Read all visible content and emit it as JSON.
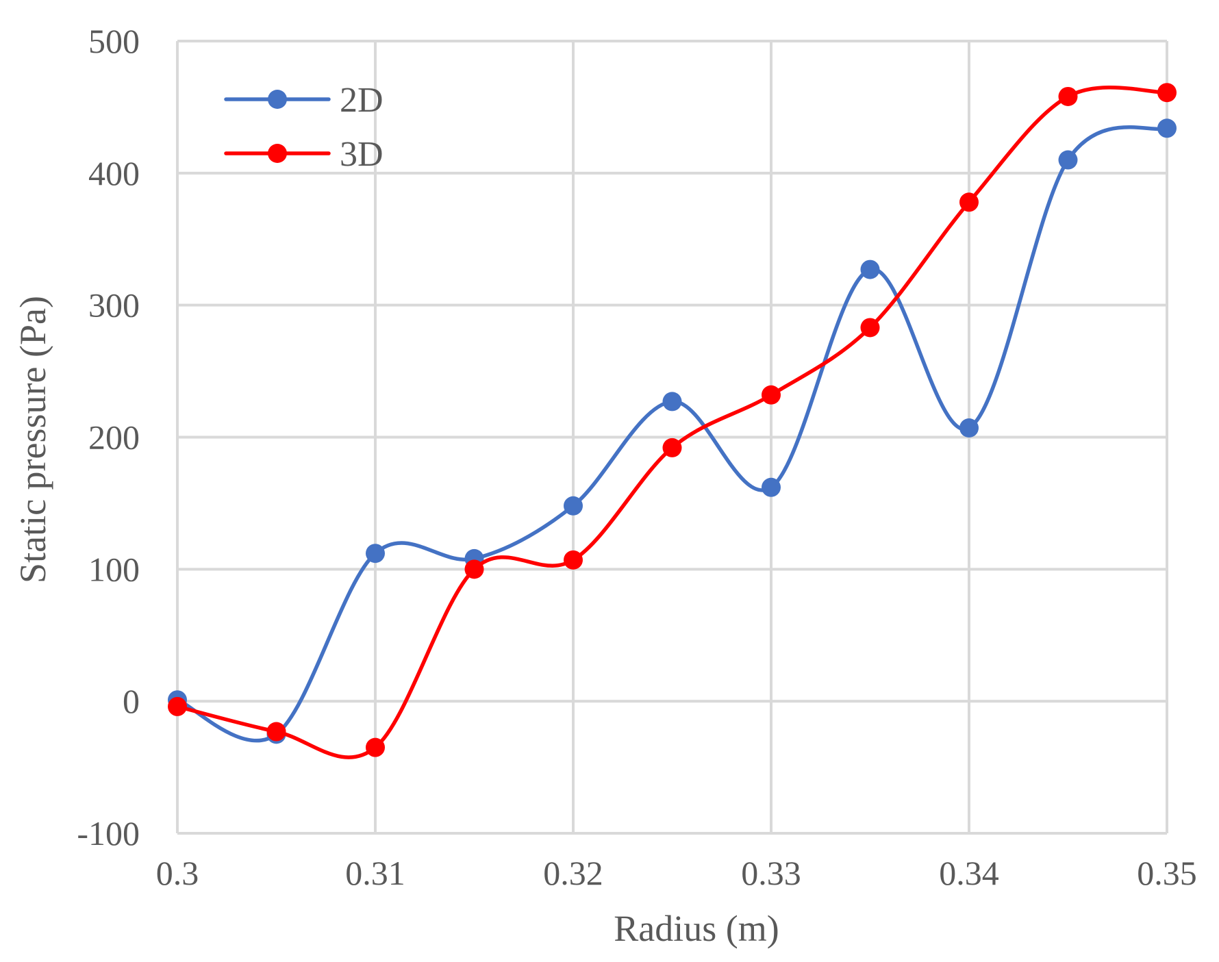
{
  "chart_data": {
    "type": "line",
    "smooth": true,
    "xlabel": "Radius (m)",
    "ylabel": "Static pressure (Pa)",
    "xlim": [
      0.3,
      0.35
    ],
    "ylim": [
      -100,
      500
    ],
    "xticks": [
      0.3,
      0.31,
      0.32,
      0.33,
      0.34,
      0.35
    ],
    "xtick_labels": [
      "0.3",
      "0.31",
      "0.32",
      "0.33",
      "0.34",
      "0.35"
    ],
    "yticks": [
      -100,
      0,
      100,
      200,
      300,
      400,
      500
    ],
    "ytick_labels": [
      "-100",
      "0",
      "100",
      "200",
      "300",
      "400",
      "500"
    ],
    "grid": true,
    "legend_position": "top-left",
    "x": [
      0.3,
      0.305,
      0.31,
      0.315,
      0.32,
      0.325,
      0.33,
      0.335,
      0.34,
      0.345,
      0.35
    ],
    "series": [
      {
        "name": "2D",
        "color": "#4472C4",
        "values": [
          1,
          -25,
          112,
          108,
          148,
          227,
          162,
          327,
          207,
          410,
          434
        ]
      },
      {
        "name": "3D",
        "color": "#FF0000",
        "values": [
          -4,
          -23,
          -35,
          100,
          107,
          192,
          232,
          283,
          378,
          458,
          461
        ]
      }
    ]
  }
}
